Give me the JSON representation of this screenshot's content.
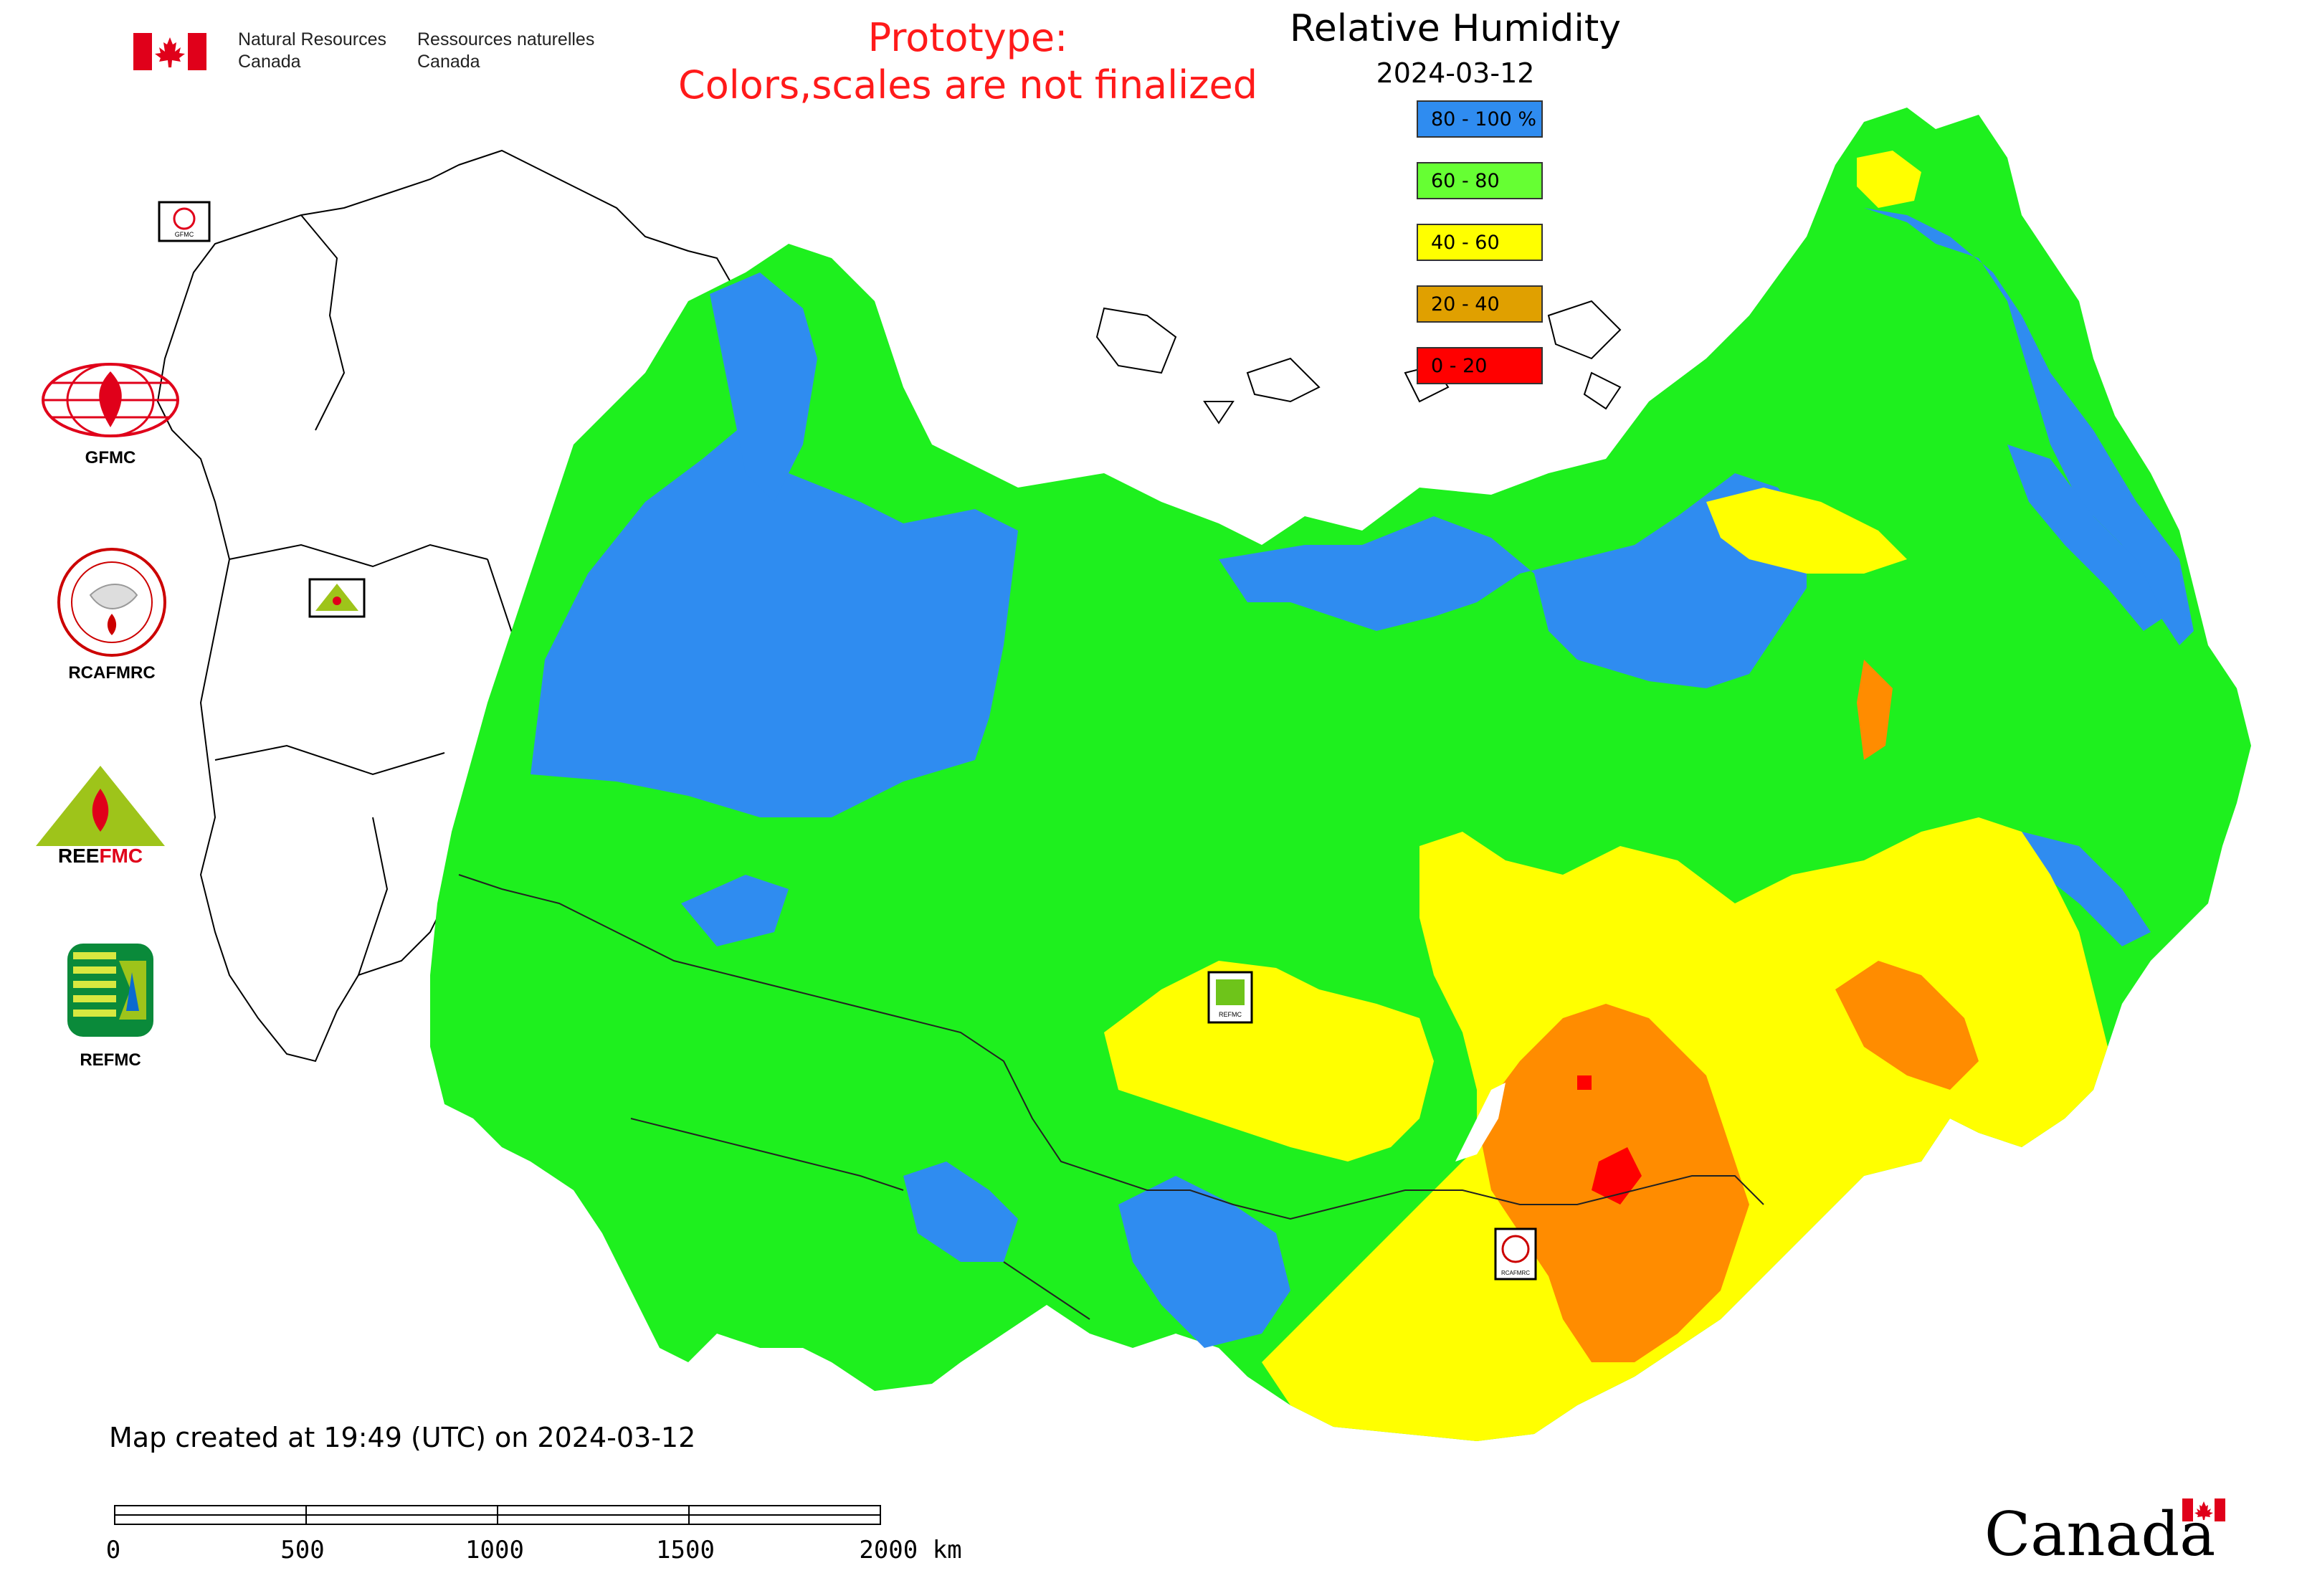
{
  "header": {
    "gov_en_line1": "Natural Resources",
    "gov_en_line2": "Canada",
    "gov_fr_line1": "Ressources naturelles",
    "gov_fr_line2": "Canada",
    "notice_line1": "Prototype:",
    "notice_line2": "Colors,scales are not finalized"
  },
  "title": "Relative Humidity",
  "date": "2024-03-12",
  "legend": [
    {
      "label": "80 - 100 %",
      "color": "#2f8cf0"
    },
    {
      "label": "60 - 80",
      "color": "#66ff33"
    },
    {
      "label": "40 - 60",
      "color": "#ffff00"
    },
    {
      "label": "20 - 40",
      "color": "#e0a000"
    },
    {
      "label": "0 - 20",
      "color": "#ff0000"
    }
  ],
  "map_colors": {
    "humid_80_100": "#2f8cf0",
    "humid_60_80": "#1ef01e",
    "humid_40_60": "#ffff00",
    "humid_20_40": "#ff8c00",
    "humid_0_20": "#ff0000"
  },
  "agencies": [
    {
      "label": "GFMC",
      "icon": "gfmc-logo-icon"
    },
    {
      "label": "RCAFMRC",
      "icon": "rcafmrc-logo-icon"
    },
    {
      "label": "REEFMC",
      "icon": "reefmc-logo-icon"
    },
    {
      "label": "REFMC",
      "icon": "refmc-logo-icon"
    }
  ],
  "map_markers": {
    "gfmc": "GFMC",
    "refmc": "REFMC",
    "rcafmrc": "RCAFMRC"
  },
  "footer": {
    "created": "Map created at 19:49 (UTC) on 2024-03-12",
    "scale_labels": [
      "0",
      "500",
      "1000",
      "1500",
      "2000 km"
    ],
    "wordmark": "Canada"
  }
}
